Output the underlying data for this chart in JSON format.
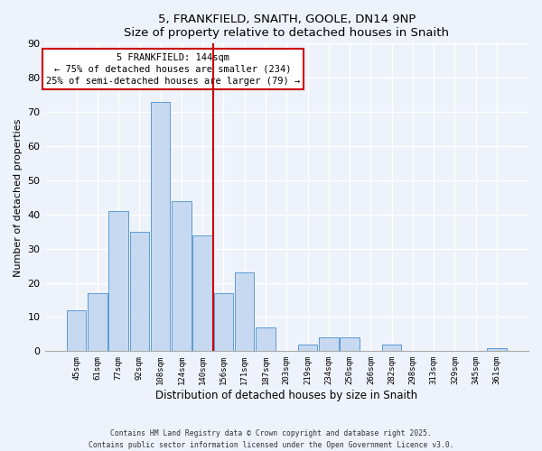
{
  "title": "5, FRANKFIELD, SNAITH, GOOLE, DN14 9NP",
  "subtitle": "Size of property relative to detached houses in Snaith",
  "xlabel": "Distribution of detached houses by size in Snaith",
  "ylabel": "Number of detached properties",
  "bar_color": "#c6d9f0",
  "bar_edge_color": "#5b9bd5",
  "background_color": "#eef2fa",
  "grid_color": "#ffffff",
  "bin_labels": [
    "45sqm",
    "61sqm",
    "77sqm",
    "92sqm",
    "108sqm",
    "124sqm",
    "140sqm",
    "156sqm",
    "171sqm",
    "187sqm",
    "203sqm",
    "219sqm",
    "234sqm",
    "250sqm",
    "266sqm",
    "282sqm",
    "298sqm",
    "313sqm",
    "329sqm",
    "345sqm",
    "361sqm"
  ],
  "bar_heights": [
    12,
    17,
    41,
    35,
    73,
    44,
    34,
    17,
    23,
    7,
    0,
    2,
    4,
    4,
    0,
    2,
    0,
    0,
    0,
    0,
    1
  ],
  "vline_x_index": 6,
  "vline_color": "#cc0000",
  "ylim": [
    0,
    90
  ],
  "yticks": [
    0,
    10,
    20,
    30,
    40,
    50,
    60,
    70,
    80,
    90
  ],
  "annotation_title": "5 FRANKFIELD: 144sqm",
  "annotation_line1": "← 75% of detached houses are smaller (234)",
  "annotation_line2": "25% of semi-detached houses are larger (79) →",
  "annotation_box_color": "#ffffff",
  "annotation_box_edge": "#cc0000",
  "footer_line1": "Contains HM Land Registry data © Crown copyright and database right 2025.",
  "footer_line2": "Contains public sector information licensed under the Open Government Licence v3.0."
}
